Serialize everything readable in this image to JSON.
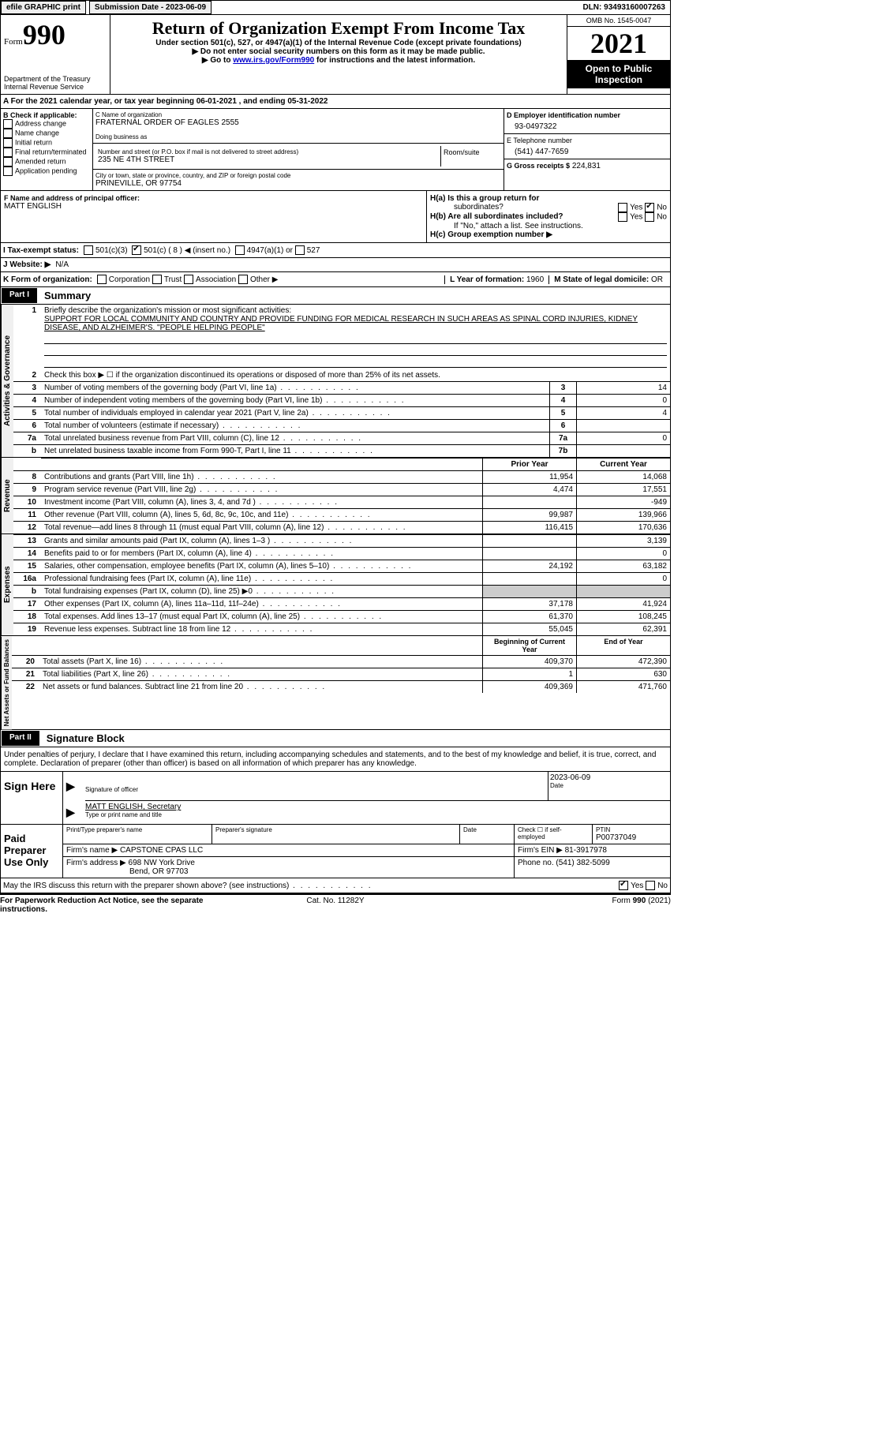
{
  "topbar": {
    "efile": "efile GRAPHIC print",
    "submission_label": "Submission Date - 2023-06-09",
    "dln_label": "DLN: 93493160007263"
  },
  "header": {
    "form_word": "Form",
    "form_num": "990",
    "dept": "Department of the Treasury",
    "irs": "Internal Revenue Service",
    "title": "Return of Organization Exempt From Income Tax",
    "sub1": "Under section 501(c), 527, or 4947(a)(1) of the Internal Revenue Code (except private foundations)",
    "sub2": "▶ Do not enter social security numbers on this form as it may be made public.",
    "sub3_pre": "▶ Go to ",
    "sub3_link": "www.irs.gov/Form990",
    "sub3_post": " for instructions and the latest information.",
    "omb": "OMB No. 1545-0047",
    "year": "2021",
    "inspection": "Open to Public Inspection"
  },
  "row_a": {
    "text": "A For the 2021 calendar year, or tax year beginning 06-01-2021    , and ending 05-31-2022"
  },
  "col_b": {
    "header": "B Check if applicable:",
    "items": [
      "Address change",
      "Name change",
      "Initial return",
      "Final return/terminated",
      "Amended return",
      "Application pending"
    ]
  },
  "col_c": {
    "name_label": "C Name of organization",
    "name": "FRATERNAL ORDER OF EAGLES 2555",
    "dba_label": "Doing business as",
    "street_label": "Number and street (or P.O. box if mail is not delivered to street address)",
    "room_label": "Room/suite",
    "street": "235 NE 4TH STREET",
    "city_label": "City or town, state or province, country, and ZIP or foreign postal code",
    "city": "PRINEVILLE, OR  97754"
  },
  "col_d": {
    "d_label": "D Employer identification number",
    "d_value": "93-0497322",
    "e_label": "E Telephone number",
    "e_value": "(541) 447-7659",
    "g_label": "G Gross receipts $",
    "g_value": "224,831"
  },
  "fg": {
    "f_label": "F Name and address of principal officer:",
    "f_name": "MATT ENGLISH",
    "ha_label": "H(a)  Is this a group return for",
    "ha_sub": "subordinates?",
    "hb_label": "H(b)  Are all subordinates included?",
    "hb_note": "If \"No,\" attach a list. See instructions.",
    "hc_label": "H(c)  Group exemption number ▶",
    "yes": "Yes",
    "no": "No"
  },
  "status_row": {
    "i_label": "I  Tax-exempt status:",
    "opt1": "501(c)(3)",
    "opt2": "501(c) ( 8 ) ◀ (insert no.)",
    "opt3": "4947(a)(1) or",
    "opt4": "527"
  },
  "j_row": {
    "label": "J  Website: ▶",
    "value": "N/A"
  },
  "k_row": {
    "label": "K Form of organization:",
    "opts": [
      "Corporation",
      "Trust",
      "Association",
      "Other ▶"
    ],
    "l_label": "L Year of formation:",
    "l_val": "1960",
    "m_label": "M State of legal domicile:",
    "m_val": "OR"
  },
  "part1": {
    "num": "Part I",
    "title": "Summary",
    "l1_label": "Briefly describe the organization's mission or most significant activities:",
    "l1_text": "SUPPORT FOR LOCAL COMMUNITY AND COUNTRY AND PROVIDE FUNDING FOR MEDICAL RESEARCH IN SUCH AREAS AS SPINAL CORD INJURIES, KIDNEY DISEASE, AND ALZHEIMER'S. \"PEOPLE HELPING PEOPLE\"",
    "l2": "Check this box ▶ ☐  if the organization discontinued its operations or disposed of more than 25% of its net assets.",
    "lines": [
      {
        "n": "3",
        "t": "Number of voting members of the governing body (Part VI, line 1a)",
        "box": "3",
        "v": "14"
      },
      {
        "n": "4",
        "t": "Number of independent voting members of the governing body (Part VI, line 1b)",
        "box": "4",
        "v": "0"
      },
      {
        "n": "5",
        "t": "Total number of individuals employed in calendar year 2021 (Part V, line 2a)",
        "box": "5",
        "v": "4"
      },
      {
        "n": "6",
        "t": "Total number of volunteers (estimate if necessary)",
        "box": "6",
        "v": ""
      },
      {
        "n": "7a",
        "t": "Total unrelated business revenue from Part VIII, column (C), line 12",
        "box": "7a",
        "v": "0"
      },
      {
        "n": "b",
        "t": "Net unrelated business taxable income from Form 990-T, Part I, line 11",
        "box": "7b",
        "v": ""
      }
    ],
    "prior_hdr": "Prior Year",
    "curr_hdr": "Current Year",
    "rev": [
      {
        "n": "8",
        "t": "Contributions and grants (Part VIII, line 1h)",
        "p": "11,954",
        "c": "14,068"
      },
      {
        "n": "9",
        "t": "Program service revenue (Part VIII, line 2g)",
        "p": "4,474",
        "c": "17,551"
      },
      {
        "n": "10",
        "t": "Investment income (Part VIII, column (A), lines 3, 4, and 7d )",
        "p": "",
        "c": "-949"
      },
      {
        "n": "11",
        "t": "Other revenue (Part VIII, column (A), lines 5, 6d, 8c, 9c, 10c, and 11e)",
        "p": "99,987",
        "c": "139,966"
      },
      {
        "n": "12",
        "t": "Total revenue—add lines 8 through 11 (must equal Part VIII, column (A), line 12)",
        "p": "116,415",
        "c": "170,636"
      }
    ],
    "exp": [
      {
        "n": "13",
        "t": "Grants and similar amounts paid (Part IX, column (A), lines 1–3 )",
        "p": "",
        "c": "3,139"
      },
      {
        "n": "14",
        "t": "Benefits paid to or for members (Part IX, column (A), line 4)",
        "p": "",
        "c": "0"
      },
      {
        "n": "15",
        "t": "Salaries, other compensation, employee benefits (Part IX, column (A), lines 5–10)",
        "p": "24,192",
        "c": "63,182"
      },
      {
        "n": "16a",
        "t": "Professional fundraising fees (Part IX, column (A), line 11e)",
        "p": "",
        "c": "0"
      },
      {
        "n": "b",
        "t": "Total fundraising expenses (Part IX, column (D), line 25) ▶0",
        "p": "shade",
        "c": "shade"
      },
      {
        "n": "17",
        "t": "Other expenses (Part IX, column (A), lines 11a–11d, 11f–24e)",
        "p": "37,178",
        "c": "41,924"
      },
      {
        "n": "18",
        "t": "Total expenses. Add lines 13–17 (must equal Part IX, column (A), line 25)",
        "p": "61,370",
        "c": "108,245"
      },
      {
        "n": "19",
        "t": "Revenue less expenses. Subtract line 18 from line 12",
        "p": "55,045",
        "c": "62,391"
      }
    ],
    "na_hdr1": "Beginning of Current Year",
    "na_hdr2": "End of Year",
    "na": [
      {
        "n": "20",
        "t": "Total assets (Part X, line 16)",
        "p": "409,370",
        "c": "472,390"
      },
      {
        "n": "21",
        "t": "Total liabilities (Part X, line 26)",
        "p": "1",
        "c": "630"
      },
      {
        "n": "22",
        "t": "Net assets or fund balances. Subtract line 21 from line 20",
        "p": "409,369",
        "c": "471,760"
      }
    ],
    "vtab1": "Activities & Governance",
    "vtab2": "Revenue",
    "vtab3": "Expenses",
    "vtab4": "Net Assets or Fund Balances"
  },
  "part2": {
    "num": "Part II",
    "title": "Signature Block",
    "decl": "Under penalties of perjury, I declare that I have examined this return, including accompanying schedules and statements, and to the best of my knowledge and belief, it is true, correct, and complete. Declaration of preparer (other than officer) is based on all information of which preparer has any knowledge.",
    "sign_here": "Sign Here",
    "sig_officer": "Signature of officer",
    "sig_date_val": "2023-06-09",
    "date": "Date",
    "officer_name": "MATT ENGLISH, Secretary",
    "type_name": "Type or print name and title",
    "paid": "Paid Preparer Use Only",
    "prep_name_label": "Print/Type preparer's name",
    "prep_sig_label": "Preparer's signature",
    "check_self": "Check ☐ if self-employed",
    "ptin_label": "PTIN",
    "ptin": "P00737049",
    "firm_name_label": "Firm's name    ▶",
    "firm_name": "CAPSTONE CPAS LLC",
    "firm_ein_label": "Firm's EIN ▶",
    "firm_ein": "81-3917978",
    "firm_addr_label": "Firm's address ▶",
    "firm_addr1": "698 NW York Drive",
    "firm_addr2": "Bend, OR  97703",
    "phone_label": "Phone no.",
    "phone": "(541) 382-5099",
    "discuss": "May the IRS discuss this return with the preparer shown above? (see instructions)"
  },
  "footer": {
    "left": "For Paperwork Reduction Act Notice, see the separate instructions.",
    "mid": "Cat. No. 11282Y",
    "right": "Form 990 (2021)"
  }
}
